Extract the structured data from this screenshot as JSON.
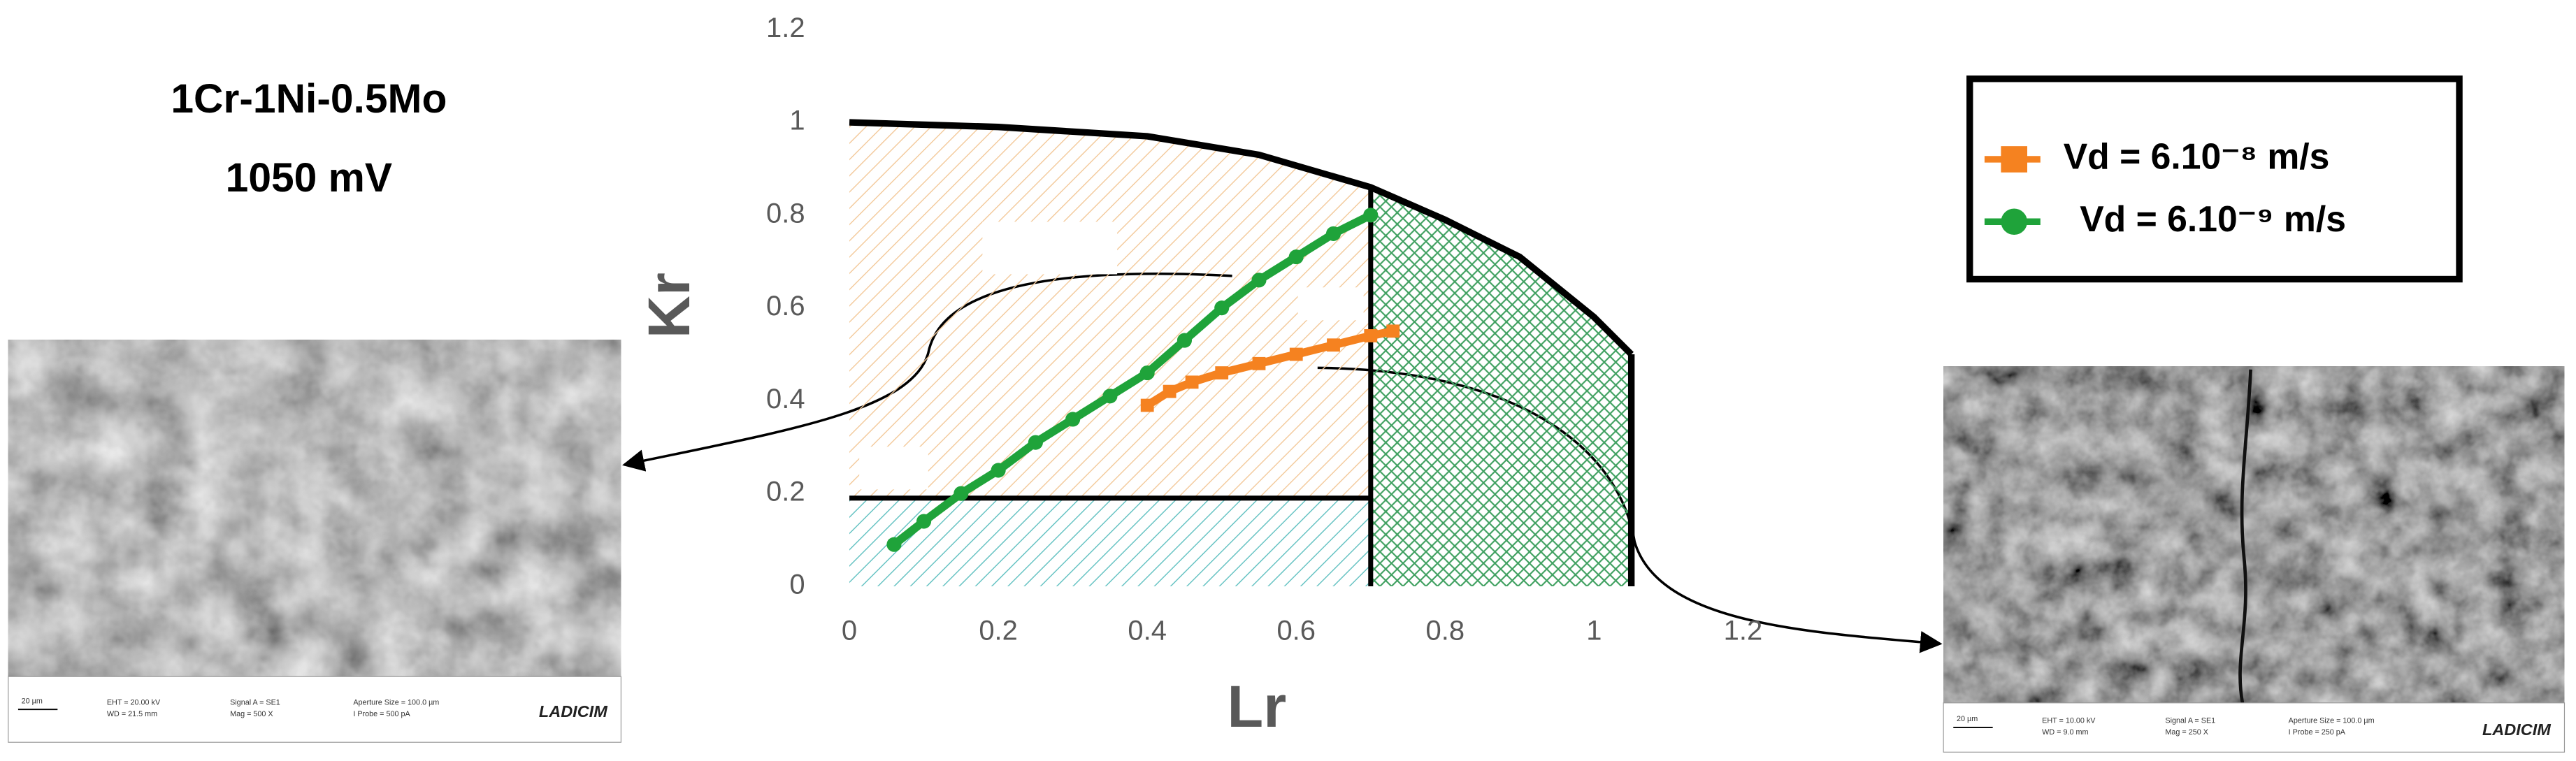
{
  "chart_data": {
    "type": "scatter",
    "title": "1Cr-1Ni-0.5Mo",
    "subtitle": "1050 mV",
    "x_label": "Lr",
    "y_label": "Kr",
    "xlim": [
      0,
      1.2
    ],
    "ylim": [
      0,
      1.2
    ],
    "xticks": [
      0,
      0.2,
      0.4,
      0.6,
      0.8,
      1,
      1.2
    ],
    "yticks": [
      0,
      0.2,
      0.4,
      0.6,
      0.8,
      1,
      1.2
    ],
    "failure_curve": {
      "x": [
        0,
        0.2,
        0.4,
        0.55,
        0.7,
        0.8,
        0.9,
        1.0,
        1.05
      ],
      "y": [
        1,
        0.99,
        0.97,
        0.93,
        0.86,
        0.79,
        0.71,
        0.58,
        0.5
      ]
    },
    "lr_split": 0.7,
    "kr_limit": 0.19,
    "cutoff_lr": 1.05,
    "series": [
      {
        "name": "Vd = 6.10⁻⁸ m/s",
        "color": "#f58220",
        "marker": "square",
        "x": [
          0.4,
          0.43,
          0.46,
          0.5,
          0.55,
          0.6,
          0.65,
          0.7,
          0.73
        ],
        "values": [
          0.39,
          0.42,
          0.44,
          0.46,
          0.48,
          0.5,
          0.52,
          0.54,
          0.55
        ]
      },
      {
        "name": "Vd = 6.10⁻⁹ m/s",
        "color": "#1fa33a",
        "marker": "circle",
        "x": [
          0.06,
          0.1,
          0.15,
          0.2,
          0.25,
          0.3,
          0.35,
          0.4,
          0.45,
          0.5,
          0.55,
          0.6,
          0.65,
          0.7
        ],
        "values": [
          0.09,
          0.14,
          0.2,
          0.25,
          0.31,
          0.36,
          0.41,
          0.46,
          0.53,
          0.6,
          0.66,
          0.71,
          0.76,
          0.8
        ]
      }
    ]
  },
  "micrographs": [
    {
      "scale_bar": "20 µm",
      "info": [
        "EHT = 20.00 kV",
        "Signal A = SE1",
        "Aperture Size = 100.0 µm",
        "WD = 21.5 mm",
        "Mag = 500 X",
        "I Probe = 500 pA"
      ],
      "logo": "LADICIM"
    },
    {
      "scale_bar": "20 µm",
      "info": [
        "EHT = 10.00 kV",
        "Signal A = SE1",
        "Aperture Size = 100.0 µm",
        "WD = 9.0 mm",
        "Mag = 250 X",
        "I Probe = 250 pA"
      ],
      "logo": "LADICIM"
    }
  ]
}
